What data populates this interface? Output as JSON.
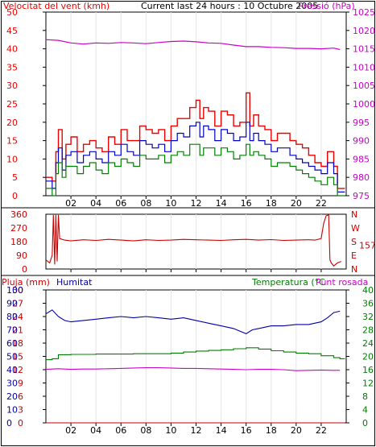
{
  "header": {
    "wind_label": "Velocitat del vent (kmh)",
    "current_label": "Current last 24 hours : 10 Octubre 2005",
    "pressure_label": "Pressió (hPa)"
  },
  "colors": {
    "wind_red": "#ee0000",
    "wind_blue": "#0000cc",
    "wind_green": "#008000",
    "pressure": "#cc00cc",
    "humidity": "#0000aa",
    "temperature": "#008000",
    "dewpoint": "#cc00cc",
    "rain": "#cc0000",
    "frame": "#000000"
  },
  "x_ticks": [
    "02",
    "04",
    "06",
    "08",
    "10",
    "12",
    "14",
    "16",
    "18",
    "20",
    "22"
  ],
  "chart_data": [
    {
      "type": "line",
      "name": "wind",
      "ylim_left": [
        0,
        50
      ],
      "left_ticks": [
        "0",
        "5",
        "10",
        "15",
        "20",
        "25",
        "30",
        "35",
        "40",
        "45",
        "50"
      ],
      "ylim_right": [
        975,
        1025
      ],
      "right_ticks": [
        "975",
        "980",
        "985",
        "990",
        "995",
        "1000",
        "1005",
        "1010",
        "1015",
        "1020",
        "1025"
      ],
      "xlim": [
        0,
        24
      ],
      "series": [
        {
          "key": "wind_gust",
          "x": [
            0.0,
            0.5,
            0.8,
            1.0,
            1.3,
            1.6,
            2.0,
            2.5,
            3.0,
            3.5,
            4.0,
            4.5,
            5.0,
            5.5,
            6.0,
            6.5,
            7.0,
            7.5,
            8.0,
            8.5,
            9.0,
            9.5,
            10.0,
            10.5,
            11.0,
            11.5,
            12.0,
            12.3,
            12.6,
            13.0,
            13.5,
            14.0,
            14.5,
            15.0,
            15.5,
            16.0,
            16.3,
            16.6,
            17.0,
            17.5,
            18.0,
            18.5,
            19.0,
            19.5,
            20.0,
            20.5,
            21.0,
            21.5,
            22.0,
            22.5,
            23.0,
            23.3
          ],
          "values": [
            5,
            4,
            12,
            18,
            10,
            14,
            16,
            12,
            14,
            15,
            13,
            12,
            16,
            14,
            18,
            15,
            15,
            19,
            18,
            17,
            18,
            15,
            19,
            21,
            21,
            24,
            26,
            21,
            24,
            23,
            19,
            23,
            22,
            19,
            20,
            28,
            19,
            22,
            19,
            18,
            15,
            17,
            17,
            15,
            14,
            13,
            11,
            9,
            8,
            12,
            8,
            2
          ]
        },
        {
          "key": "wind_avg",
          "x": [
            0.0,
            0.5,
            0.8,
            1.0,
            1.3,
            1.6,
            2.0,
            2.5,
            3.0,
            3.5,
            4.0,
            4.5,
            5.0,
            5.5,
            6.0,
            6.5,
            7.0,
            7.5,
            8.0,
            8.5,
            9.0,
            9.5,
            10.0,
            10.5,
            11.0,
            11.5,
            12.0,
            12.3,
            12.6,
            13.0,
            13.5,
            14.0,
            14.5,
            15.0,
            15.5,
            16.0,
            16.3,
            16.6,
            17.0,
            17.5,
            18.0,
            18.5,
            19.0,
            19.5,
            20.0,
            20.5,
            21.0,
            21.5,
            22.0,
            22.5,
            23.0,
            23.3
          ],
          "values": [
            4,
            2,
            9,
            13,
            7,
            11,
            12,
            9,
            11,
            12,
            10,
            9,
            12,
            11,
            14,
            12,
            11,
            15,
            14,
            13,
            14,
            12,
            15,
            17,
            16,
            19,
            20,
            16,
            19,
            18,
            15,
            18,
            17,
            15,
            16,
            20,
            15,
            17,
            15,
            14,
            12,
            13,
            13,
            11,
            10,
            9,
            8,
            7,
            6,
            9,
            6,
            1
          ]
        },
        {
          "key": "wind_min",
          "x": [
            0.0,
            0.5,
            0.8,
            1.0,
            1.3,
            1.6,
            2.0,
            2.5,
            3.0,
            3.5,
            4.0,
            4.5,
            5.0,
            5.5,
            6.0,
            6.5,
            7.0,
            7.5,
            8.0,
            8.5,
            9.0,
            9.5,
            10.0,
            10.5,
            11.0,
            11.5,
            12.0,
            12.3,
            12.6,
            13.0,
            13.5,
            14.0,
            14.5,
            15.0,
            15.5,
            16.0,
            16.3,
            16.6,
            17.0,
            17.5,
            18.0,
            18.5,
            19.0,
            19.5,
            20.0,
            20.5,
            21.0,
            21.5,
            22.0,
            22.5,
            23.0,
            23.3
          ],
          "values": [
            2,
            0,
            6,
            9,
            5,
            8,
            8,
            6,
            8,
            9,
            7,
            6,
            9,
            8,
            10,
            9,
            8,
            11,
            10,
            10,
            11,
            9,
            11,
            12,
            11,
            14,
            14,
            11,
            13,
            13,
            11,
            13,
            12,
            10,
            11,
            14,
            11,
            12,
            11,
            10,
            8,
            9,
            9,
            8,
            7,
            6,
            5,
            4,
            3,
            5,
            3,
            0
          ]
        },
        {
          "key": "pressure",
          "axis": "right",
          "x": [
            0,
            1,
            2,
            3,
            4,
            5,
            6,
            7,
            8,
            9,
            10,
            11,
            12,
            13,
            14,
            15,
            16,
            17,
            18,
            19,
            20,
            21,
            22,
            23,
            23.5
          ],
          "values": [
            1017.5,
            1017.3,
            1016.6,
            1016.3,
            1016.6,
            1016.5,
            1016.7,
            1016.6,
            1016.4,
            1016.7,
            1017.0,
            1017.1,
            1016.9,
            1016.6,
            1016.5,
            1016.0,
            1015.6,
            1015.6,
            1015.4,
            1015.3,
            1015.1,
            1015.1,
            1015.0,
            1015.2,
            1014.8
          ]
        }
      ]
    },
    {
      "type": "line",
      "name": "direction",
      "ylim_left": [
        0,
        360
      ],
      "left_ticks": [
        "0",
        "90",
        "180",
        "270",
        "360"
      ],
      "right_ticks": [
        "N",
        "E",
        "S",
        "W",
        "N"
      ],
      "current_value_label": "157",
      "xlim": [
        0,
        24
      ],
      "series": [
        {
          "key": "wind_direction",
          "x": [
            0.0,
            0.3,
            0.5,
            0.6,
            0.7,
            0.8,
            0.9,
            1.0,
            1.1,
            1.5,
            2,
            3,
            4,
            5,
            6,
            7,
            8,
            9,
            10,
            11,
            12,
            13,
            14,
            15,
            16,
            17,
            18,
            19,
            20,
            21,
            21.5,
            22.0,
            22.2,
            22.4,
            22.6,
            22.7,
            22.8,
            23.0,
            23.3,
            23.6
          ],
          "values": [
            60,
            40,
            90,
            355,
            30,
            355,
            50,
            355,
            200,
            190,
            185,
            192,
            188,
            195,
            190,
            185,
            192,
            188,
            190,
            195,
            192,
            190,
            188,
            192,
            195,
            190,
            193,
            188,
            190,
            192,
            190,
            200,
            300,
            350,
            355,
            60,
            40,
            20,
            40,
            50
          ]
        }
      ]
    },
    {
      "type": "line",
      "name": "climate",
      "left_title": "Pluja (mm)",
      "middle_title": "Humitat",
      "right_title": "Temperatura (°C",
      "right_title2": "Punt rosada",
      "rain_ticks": [
        "0",
        "3",
        "6",
        "9",
        "12",
        "15",
        "18",
        "21",
        "24",
        "27",
        "30"
      ],
      "humidity_ticks": [
        "0",
        "10",
        "20",
        "30",
        "40",
        "50",
        "60",
        "70",
        "80",
        "90",
        "100"
      ],
      "temp_ticks": [
        "0",
        "4",
        "8",
        "12",
        "16",
        "20",
        "24",
        "28",
        "32",
        "36",
        "40"
      ],
      "xlim": [
        0,
        24
      ],
      "series": [
        {
          "key": "humidity",
          "axis": "humidity",
          "x": [
            0,
            0.5,
            1,
            1.5,
            2,
            3,
            4,
            5,
            6,
            7,
            8,
            9,
            10,
            11,
            12,
            13,
            14,
            15,
            15.5,
            16,
            16.5,
            17,
            18,
            19,
            20,
            21,
            22,
            22.5,
            23,
            23.5
          ],
          "values": [
            82,
            85,
            80,
            77,
            76,
            77,
            78,
            79,
            80,
            79,
            80,
            79,
            78,
            79,
            77,
            75,
            73,
            71,
            69,
            67,
            70,
            71,
            73,
            73,
            74,
            74,
            76,
            79,
            83,
            84
          ]
        },
        {
          "key": "temperature",
          "axis": "temp",
          "x": [
            0,
            0.5,
            1,
            2,
            3,
            4,
            5,
            6,
            7,
            8,
            9,
            10,
            11,
            12,
            13,
            14,
            15,
            16,
            17,
            18,
            19,
            20,
            21,
            22,
            23,
            23.5
          ],
          "values": [
            19.0,
            19.3,
            20.5,
            20.6,
            20.6,
            20.7,
            20.7,
            20.7,
            20.8,
            20.8,
            20.8,
            21.0,
            21.3,
            21.6,
            21.8,
            22.0,
            22.3,
            22.6,
            22.2,
            21.7,
            21.3,
            21.0,
            20.8,
            20.2,
            19.6,
            19.3
          ]
        },
        {
          "key": "dewpoint",
          "axis": "temp",
          "x": [
            0,
            1,
            2,
            3,
            4,
            5,
            6,
            7,
            8,
            9,
            10,
            11,
            12,
            13,
            14,
            15,
            16,
            17,
            18,
            19,
            20,
            21,
            22,
            23,
            23.5
          ],
          "values": [
            16.1,
            16.3,
            16.1,
            16.2,
            16.2,
            16.3,
            16.4,
            16.5,
            16.6,
            16.6,
            16.5,
            16.4,
            16.4,
            16.3,
            16.2,
            16.1,
            16.0,
            16.1,
            16.1,
            16.0,
            15.7,
            15.8,
            15.9,
            15.8,
            15.8
          ]
        },
        {
          "key": "rain",
          "axis": "rain",
          "x": [
            0,
            23.5
          ],
          "values": [
            0,
            0
          ]
        }
      ]
    }
  ]
}
